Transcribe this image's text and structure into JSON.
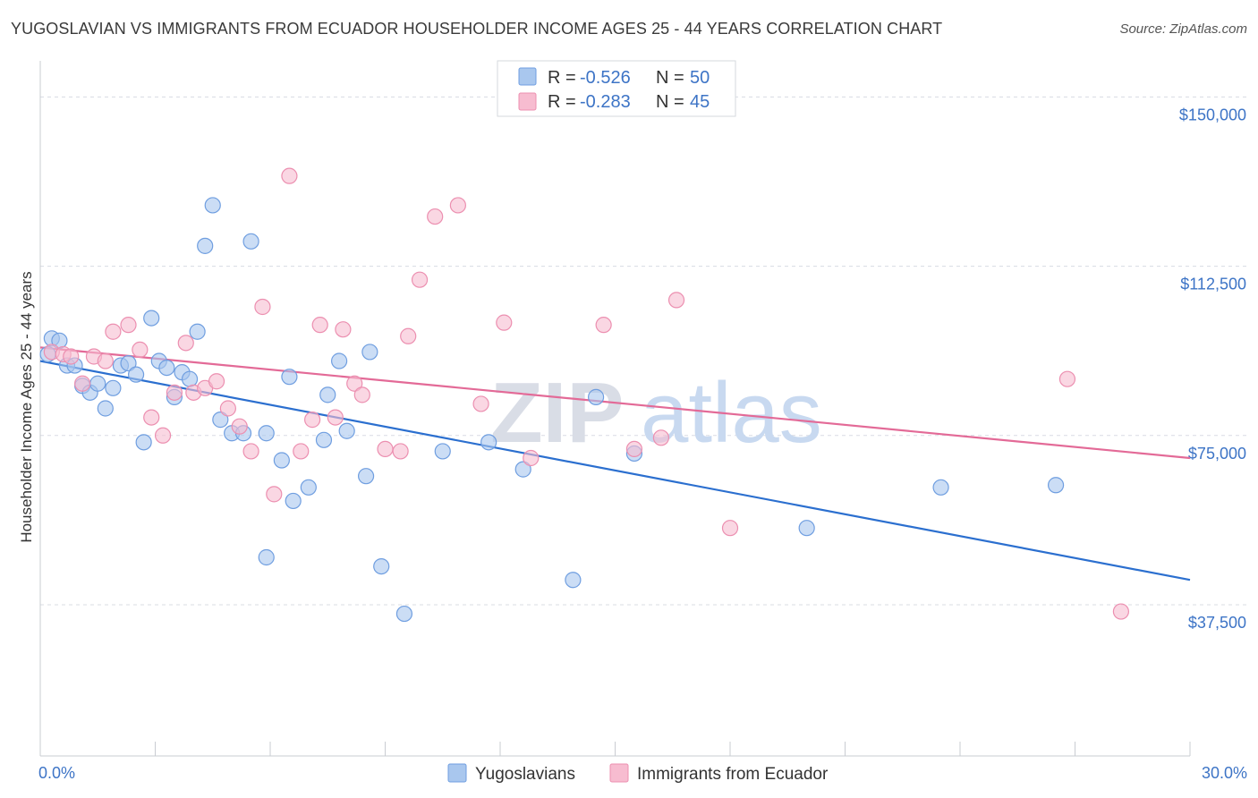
{
  "title": "YUGOSLAVIAN VS IMMIGRANTS FROM ECUADOR HOUSEHOLDER INCOME AGES 25 - 44 YEARS CORRELATION CHART",
  "source": "Source: ZipAtlas.com",
  "watermark": {
    "zip": "ZIP",
    "atlas": "atlas"
  },
  "colors": {
    "blue_fill": "#a9c7ee",
    "blue_stroke": "#6f9ee0",
    "blue_line": "#2b6fcf",
    "pink_fill": "#f7bcd0",
    "pink_stroke": "#ec8fb0",
    "pink_line": "#e36a97",
    "grid": "#d8dce3",
    "axis_text": "#3d74c6"
  },
  "legend": {
    "rows": [
      {
        "r_label": "R =",
        "r_value": "-0.526",
        "n_label": "N =",
        "n_value": "50"
      },
      {
        "r_label": "R =",
        "r_value": "-0.283",
        "n_label": "N =",
        "n_value": "45"
      }
    ]
  },
  "chart_data": {
    "type": "scatter",
    "xlabel": "",
    "ylabel": "Householder Income Ages 25 - 44 years",
    "xlim": [
      0,
      30
    ],
    "ylim": [
      4000,
      158000
    ],
    "x_tick_labels": {
      "left": "0.0%",
      "right": "30.0%"
    },
    "y_ticks": [
      {
        "value": 150000,
        "label": "$150,000"
      },
      {
        "value": 112500,
        "label": "$112,500"
      },
      {
        "value": 75000,
        "label": "$75,000"
      },
      {
        "value": 37500,
        "label": "$37,500"
      }
    ],
    "grid": true,
    "legend_position": "top-center and bottom",
    "series": [
      {
        "name": "Yugoslavians",
        "trend": {
          "x": [
            0,
            30
          ],
          "y": [
            91500,
            43000
          ]
        },
        "points": [
          {
            "x": 0.2,
            "y": 93000
          },
          {
            "x": 0.3,
            "y": 96500
          },
          {
            "x": 0.5,
            "y": 96000
          },
          {
            "x": 0.7,
            "y": 90500
          },
          {
            "x": 0.9,
            "y": 90500
          },
          {
            "x": 1.1,
            "y": 86000
          },
          {
            "x": 1.3,
            "y": 84500
          },
          {
            "x": 1.5,
            "y": 86500
          },
          {
            "x": 1.7,
            "y": 81000
          },
          {
            "x": 1.9,
            "y": 85500
          },
          {
            "x": 2.1,
            "y": 90500
          },
          {
            "x": 2.3,
            "y": 91000
          },
          {
            "x": 2.5,
            "y": 88500
          },
          {
            "x": 2.7,
            "y": 73500
          },
          {
            "x": 2.9,
            "y": 101000
          },
          {
            "x": 3.1,
            "y": 91500
          },
          {
            "x": 3.3,
            "y": 90000
          },
          {
            "x": 3.5,
            "y": 83500
          },
          {
            "x": 3.7,
            "y": 89000
          },
          {
            "x": 3.9,
            "y": 87500
          },
          {
            "x": 4.1,
            "y": 98000
          },
          {
            "x": 4.3,
            "y": 117000
          },
          {
            "x": 4.5,
            "y": 126000
          },
          {
            "x": 4.7,
            "y": 78500
          },
          {
            "x": 5.0,
            "y": 75500
          },
          {
            "x": 5.3,
            "y": 75500
          },
          {
            "x": 5.5,
            "y": 118000
          },
          {
            "x": 5.9,
            "y": 75500
          },
          {
            "x": 5.9,
            "y": 48000
          },
          {
            "x": 6.3,
            "y": 69500
          },
          {
            "x": 6.5,
            "y": 88000
          },
          {
            "x": 6.6,
            "y": 60500
          },
          {
            "x": 7.0,
            "y": 63500
          },
          {
            "x": 7.4,
            "y": 74000
          },
          {
            "x": 7.5,
            "y": 84000
          },
          {
            "x": 7.8,
            "y": 91500
          },
          {
            "x": 8.0,
            "y": 76000
          },
          {
            "x": 8.5,
            "y": 66000
          },
          {
            "x": 8.6,
            "y": 93500
          },
          {
            "x": 8.9,
            "y": 46000
          },
          {
            "x": 9.5,
            "y": 35500
          },
          {
            "x": 10.5,
            "y": 71500
          },
          {
            "x": 11.7,
            "y": 73500
          },
          {
            "x": 12.6,
            "y": 67500
          },
          {
            "x": 13.9,
            "y": 43000
          },
          {
            "x": 14.5,
            "y": 83500
          },
          {
            "x": 15.5,
            "y": 71000
          },
          {
            "x": 20.0,
            "y": 54500
          },
          {
            "x": 23.5,
            "y": 63500
          },
          {
            "x": 26.5,
            "y": 64000
          }
        ]
      },
      {
        "name": "Immigrants from Ecuador",
        "trend": {
          "x": [
            0,
            30
          ],
          "y": [
            94500,
            70000
          ]
        },
        "points": [
          {
            "x": 0.3,
            "y": 93500
          },
          {
            "x": 0.6,
            "y": 93000
          },
          {
            "x": 0.8,
            "y": 92500
          },
          {
            "x": 1.1,
            "y": 86500
          },
          {
            "x": 1.4,
            "y": 92500
          },
          {
            "x": 1.7,
            "y": 91500
          },
          {
            "x": 1.9,
            "y": 98000
          },
          {
            "x": 2.3,
            "y": 99500
          },
          {
            "x": 2.6,
            "y": 94000
          },
          {
            "x": 2.9,
            "y": 79000
          },
          {
            "x": 3.2,
            "y": 75000
          },
          {
            "x": 3.5,
            "y": 84500
          },
          {
            "x": 3.8,
            "y": 95500
          },
          {
            "x": 4.0,
            "y": 84500
          },
          {
            "x": 4.3,
            "y": 85500
          },
          {
            "x": 4.6,
            "y": 87000
          },
          {
            "x": 4.9,
            "y": 81000
          },
          {
            "x": 5.2,
            "y": 77000
          },
          {
            "x": 5.5,
            "y": 71500
          },
          {
            "x": 5.8,
            "y": 103500
          },
          {
            "x": 6.1,
            "y": 62000
          },
          {
            "x": 6.5,
            "y": 132500
          },
          {
            "x": 6.8,
            "y": 71500
          },
          {
            "x": 7.1,
            "y": 78500
          },
          {
            "x": 7.3,
            "y": 99500
          },
          {
            "x": 7.7,
            "y": 79000
          },
          {
            "x": 7.9,
            "y": 98500
          },
          {
            "x": 8.2,
            "y": 86500
          },
          {
            "x": 8.4,
            "y": 84000
          },
          {
            "x": 9.0,
            "y": 72000
          },
          {
            "x": 9.4,
            "y": 71500
          },
          {
            "x": 9.6,
            "y": 97000
          },
          {
            "x": 9.9,
            "y": 109500
          },
          {
            "x": 10.3,
            "y": 123500
          },
          {
            "x": 10.9,
            "y": 126000
          },
          {
            "x": 11.5,
            "y": 82000
          },
          {
            "x": 12.1,
            "y": 100000
          },
          {
            "x": 12.8,
            "y": 70000
          },
          {
            "x": 14.7,
            "y": 99500
          },
          {
            "x": 15.5,
            "y": 72000
          },
          {
            "x": 16.2,
            "y": 74500
          },
          {
            "x": 16.6,
            "y": 105000
          },
          {
            "x": 18.0,
            "y": 54500
          },
          {
            "x": 26.8,
            "y": 87500
          },
          {
            "x": 28.2,
            "y": 36000
          }
        ]
      }
    ]
  }
}
